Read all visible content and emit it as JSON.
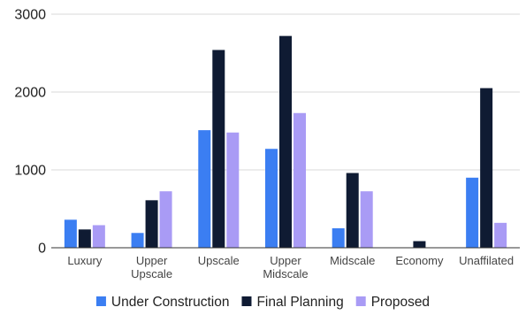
{
  "chart_data": {
    "type": "bar",
    "title": "",
    "xlabel": "",
    "ylabel": "",
    "categories": [
      [
        "Luxury"
      ],
      [
        "Upper",
        "Upscale"
      ],
      [
        "Upscale"
      ],
      [
        "Upper",
        "Midscale"
      ],
      [
        "Midscale"
      ],
      [
        "Economy"
      ],
      [
        "Unaffilated"
      ]
    ],
    "series": [
      {
        "name": "Under Construction",
        "color": "#3b7ef2",
        "values": [
          360,
          190,
          1510,
          1270,
          250,
          0,
          900
        ]
      },
      {
        "name": "Final Planning",
        "color": "#0f1b33",
        "values": [
          235,
          610,
          2540,
          2720,
          960,
          85,
          2050
        ]
      },
      {
        "name": "Proposed",
        "color": "#a99bf5",
        "values": [
          290,
          725,
          1480,
          1730,
          725,
          0,
          320
        ]
      }
    ],
    "ylim": [
      0,
      3000
    ],
    "yticks": [
      0,
      1000,
      2000,
      3000
    ],
    "grid": true,
    "legend_position": "bottom"
  }
}
